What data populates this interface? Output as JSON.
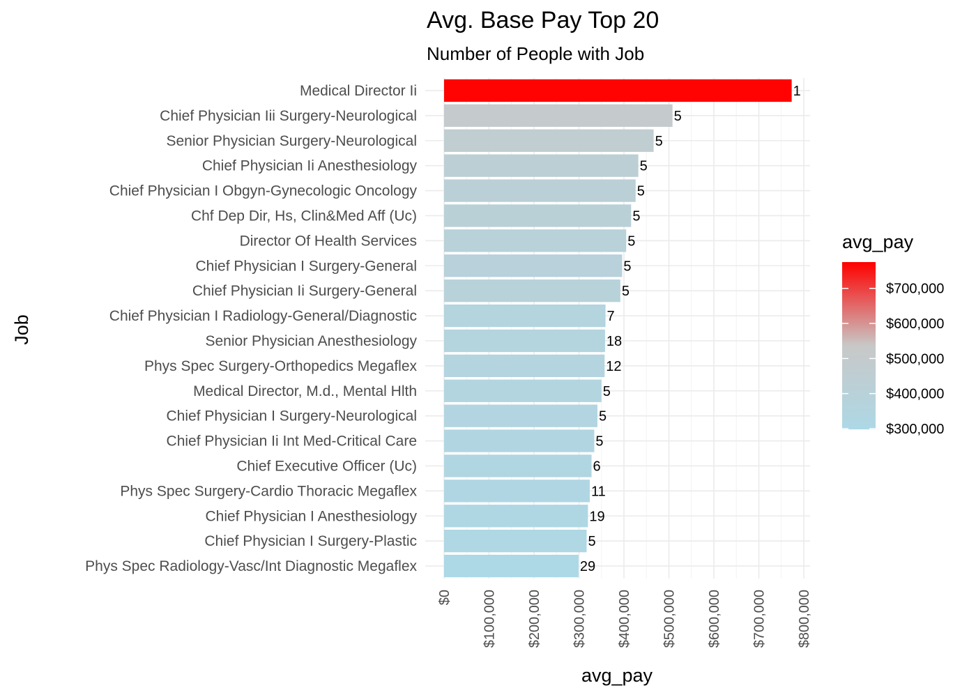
{
  "chart_data": {
    "type": "bar",
    "orientation": "horizontal",
    "title": "Avg. Base Pay Top 20",
    "subtitle": "Number of People with Job",
    "xlabel": "avg_pay",
    "ylabel": "Job",
    "xlim": [
      0,
      800000
    ],
    "x_ticks": [
      0,
      100000,
      200000,
      300000,
      400000,
      500000,
      600000,
      700000,
      800000
    ],
    "x_tick_labels": [
      "$0",
      "$100,000",
      "$200,000",
      "$300,000",
      "$400,000",
      "$500,000",
      "$600,000",
      "$700,000",
      "$800,000"
    ],
    "grid": true,
    "legend": {
      "title": "avg_pay",
      "position": "right",
      "type": "gradient",
      "low_color": "#add8e6",
      "mid_color": "#c8c8c8",
      "high_color": "#ff0000",
      "range": [
        298000,
        775000
      ],
      "ticks": [
        300000,
        400000,
        500000,
        600000,
        700000
      ],
      "tick_labels": [
        "$300,000",
        "$400,000",
        "$500,000",
        "$600,000",
        "$700,000"
      ]
    },
    "categories": [
      "Medical Director Ii",
      "Chief Physician Iii Surgery-Neurological",
      "Senior Physician Surgery-Neurological",
      "Chief Physician Ii Anesthesiology",
      "Chief Physician I Obgyn-Gynecologic Oncology",
      "Chf Dep Dir, Hs, Clin&Med Aff (Uc)",
      "Director Of Health Services",
      "Chief Physician I Surgery-General",
      "Chief Physician Ii Surgery-General",
      "Chief Physician I Radiology-General/Diagnostic",
      "Senior Physician Anesthesiology",
      "Phys Spec Surgery-Orthopedics Megaflex",
      "Medical Director, M.d., Mental Hlth",
      "Chief Physician I Surgery-Neurological",
      "Chief Physician Ii Int Med-Critical Care",
      "Chief Executive Officer (Uc)",
      "Phys Spec Surgery-Cardio Thoracic Megaflex",
      "Chief Physician I Anesthesiology",
      "Chief Physician I Surgery-Plastic",
      "Phys Spec Radiology-Vasc/Int Diagnostic Megaflex"
    ],
    "values": [
      773000,
      508000,
      466000,
      432000,
      426000,
      416000,
      405000,
      396000,
      392000,
      359000,
      358000,
      357000,
      350000,
      341000,
      334000,
      328000,
      324000,
      320000,
      317000,
      299000
    ],
    "data_labels": [
      "1",
      "5",
      "5",
      "5",
      "5",
      "5",
      "5",
      "5",
      "5",
      "7",
      "18",
      "12",
      "5",
      "5",
      "5",
      "6",
      "11",
      "19",
      "5",
      "29"
    ]
  }
}
